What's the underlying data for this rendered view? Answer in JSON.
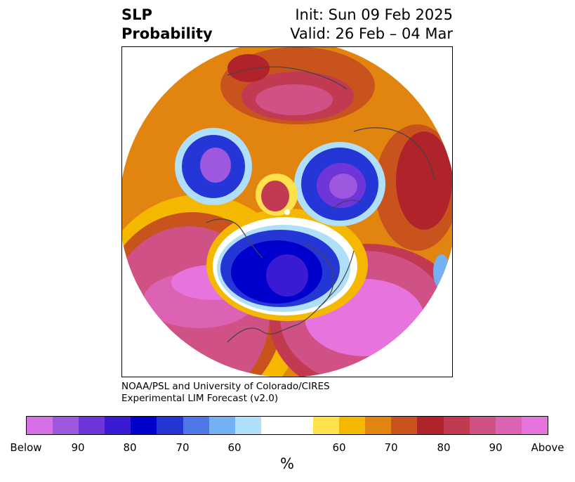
{
  "title": {
    "left_line1": "SLP",
    "left_line2": "Probability",
    "right_line1": "Init: Sun 09 Feb 2025",
    "right_line2": "Valid: 26 Feb – 04 Mar"
  },
  "credit": {
    "line1": "NOAA/PSL and University of Colorado/CIRES",
    "line2": "Experimental LIM Forecast (v2.0)"
  },
  "colorbar": {
    "segments_below": [
      "#d76fe6",
      "#9d58df",
      "#6e35d8",
      "#3a1ad2",
      "#0000cd",
      "#2536d6",
      "#4d78e6",
      "#74b1f2",
      "#afdff9"
    ],
    "neutral": "#ffffff",
    "segments_above": [
      "#ffe14d",
      "#f5b800",
      "#e28510",
      "#c9531c",
      "#b1232a",
      "#c23a52",
      "#cf5185",
      "#dc62b4",
      "#e774dc"
    ],
    "labels": {
      "below": "Below",
      "b90": "90",
      "b80": "80",
      "b70": "70",
      "b60": "60",
      "a60": "60",
      "a70": "70",
      "a80": "80",
      "a90": "90",
      "above": "Above"
    },
    "units": "%"
  }
}
